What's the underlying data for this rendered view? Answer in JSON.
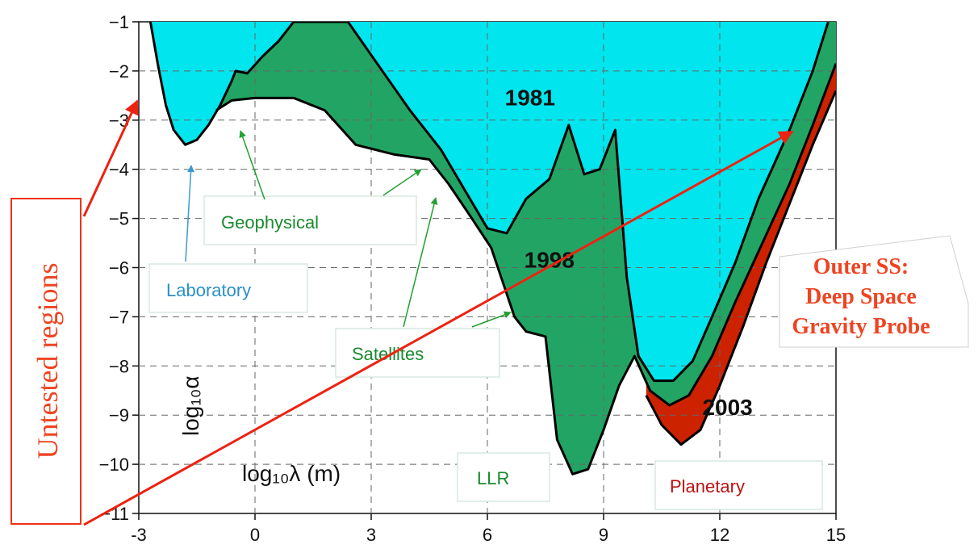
{
  "chart_data": {
    "type": "area",
    "xlabel": "log₁₀λ (m)",
    "ylabel": "log₁₀α",
    "xlim": [
      -3,
      15
    ],
    "ylim": [
      -11,
      -1
    ],
    "x_ticks": [
      "-3",
      "0",
      "3",
      "6",
      "9",
      "12",
      "15"
    ],
    "y_ticks": [
      "-1",
      "-2",
      "-3",
      "-4",
      "-5",
      "-6",
      "-7",
      "-8",
      "-9",
      "-10",
      "-11"
    ],
    "grid": true,
    "series": [
      {
        "name": "1981",
        "color": "#00e5ee",
        "x": [
          -2.7,
          -2.5,
          -2.3,
          -2.1,
          -1.8,
          -1.5,
          -1.2,
          -0.9,
          -0.6,
          -0.5,
          -0.2,
          0.2,
          0.6,
          1.0,
          2.4,
          3.2,
          4.0,
          4.8,
          5.4,
          6.0,
          6.5,
          7.0,
          7.6,
          8.1,
          8.5,
          8.9,
          9.3,
          9.6,
          9.9,
          10.3,
          10.8,
          11.3,
          11.8,
          12.4,
          13.0,
          13.8,
          14.4,
          14.8
        ],
        "y": [
          -1.0,
          -1.9,
          -2.7,
          -3.2,
          -3.5,
          -3.4,
          -3.1,
          -2.7,
          -2.2,
          -2.0,
          -2.05,
          -1.7,
          -1.4,
          -1.0,
          -1.0,
          -1.9,
          -2.8,
          -3.6,
          -4.4,
          -5.2,
          -5.3,
          -4.6,
          -4.2,
          -3.1,
          -4.1,
          -4.0,
          -3.2,
          -6.2,
          -7.8,
          -8.3,
          -8.3,
          -7.9,
          -7.0,
          -5.9,
          -4.6,
          -3.2,
          -2.0,
          -1.0
        ]
      },
      {
        "name": "1998",
        "color": "#22a564",
        "x": [
          -1.0,
          -0.6,
          0.0,
          1.0,
          1.8,
          2.6,
          3.6,
          4.5,
          5.0,
          5.6,
          6.1,
          6.4,
          6.7,
          7.0,
          7.5,
          7.8,
          8.2,
          8.6,
          9.0,
          9.4,
          9.8,
          10.2,
          10.7,
          11.2,
          11.8,
          12.4,
          13.1,
          13.8,
          14.4,
          15.0
        ],
        "y": [
          -2.8,
          -2.6,
          -2.55,
          -2.55,
          -2.8,
          -3.5,
          -3.7,
          -3.8,
          -4.3,
          -5.0,
          -5.6,
          -6.3,
          -7.0,
          -7.3,
          -7.4,
          -9.5,
          -10.2,
          -10.1,
          -9.3,
          -8.4,
          -7.8,
          -8.5,
          -8.8,
          -8.6,
          -7.8,
          -6.7,
          -5.5,
          -4.3,
          -3.1,
          -1.85
        ]
      },
      {
        "name": "2003",
        "color": "#cc2200",
        "x": [
          10.1,
          10.5,
          11.0,
          11.5,
          12.0,
          12.6,
          13.2,
          13.8,
          14.4,
          15.0
        ],
        "y": [
          -8.6,
          -9.2,
          -9.6,
          -9.3,
          -8.4,
          -7.2,
          -5.9,
          -4.7,
          -3.5,
          -2.4
        ]
      }
    ],
    "annotations": {
      "labels": [
        {
          "text": "1981",
          "x": 7.1,
          "y": -2.7
        },
        {
          "text": "1998",
          "x": 7.6,
          "y": -6.0
        },
        {
          "text": "2003",
          "x": 12.2,
          "y": -9.0
        }
      ],
      "boxes": [
        {
          "text": "Geophysical",
          "color": "#1a8a2e"
        },
        {
          "text": "Laboratory",
          "color": "#2a8fc6"
        },
        {
          "text": "Satellites",
          "color": "#1a8a2e"
        },
        {
          "text": "LLR",
          "color": "#1a8a2e"
        },
        {
          "text": "Planetary",
          "color": "#bb1111"
        }
      ],
      "untested_regions": "Untested regions",
      "outer_ss": [
        "Outer SS:",
        "Deep Space",
        "Gravity Probe"
      ]
    }
  }
}
